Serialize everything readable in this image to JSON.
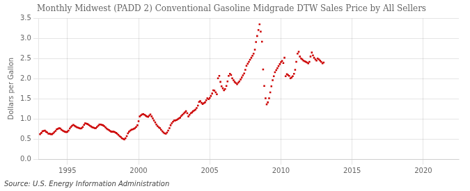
{
  "chart_data": {
    "type": "scatter",
    "title": "Monthly Midwest (PADD 2) Conventional Gasoline Midgrade DTW Sales Price by All Sellers",
    "y_label": "Dollars per Gallon",
    "annotations": [
      "Source: U.S. Energy Information Administration"
    ],
    "color": "#cc0000",
    "marker": "square",
    "grid": true,
    "xlim": [
      1993.0,
      2022.5
    ],
    "ylim": [
      0.0,
      3.5
    ],
    "xticks": [
      1995,
      2000,
      2005,
      2010,
      2015,
      2020
    ],
    "yticks": [
      {
        "value": 0.0,
        "label": "0.0"
      },
      0.5,
      {
        "value": 1.0,
        "label": "1.0"
      },
      1.5,
      {
        "value": 2.0,
        "label": "2.0"
      },
      2.5,
      {
        "value": 3.0,
        "label": "3.0"
      },
      3.5
    ],
    "x": [
      1993.08,
      1993.17,
      1993.25,
      1993.33,
      1993.42,
      1993.5,
      1993.58,
      1993.67,
      1993.75,
      1993.83,
      1993.92,
      1994.0,
      1994.08,
      1994.17,
      1994.25,
      1994.33,
      1994.42,
      1994.5,
      1994.58,
      1994.67,
      1994.75,
      1994.83,
      1994.92,
      1995.0,
      1995.08,
      1995.17,
      1995.25,
      1995.33,
      1995.42,
      1995.5,
      1995.58,
      1995.67,
      1995.75,
      1995.83,
      1995.92,
      1996.0,
      1996.08,
      1996.17,
      1996.25,
      1996.33,
      1996.42,
      1996.5,
      1996.58,
      1996.67,
      1996.75,
      1996.83,
      1996.92,
      1997.0,
      1997.08,
      1997.17,
      1997.25,
      1997.33,
      1997.42,
      1997.5,
      1997.58,
      1997.67,
      1997.75,
      1997.83,
      1997.92,
      1998.0,
      1998.08,
      1998.17,
      1998.25,
      1998.33,
      1998.42,
      1998.5,
      1998.58,
      1998.67,
      1998.75,
      1998.83,
      1998.92,
      1999.0,
      1999.08,
      1999.17,
      1999.25,
      1999.33,
      1999.42,
      1999.5,
      1999.58,
      1999.67,
      1999.75,
      1999.83,
      1999.92,
      2000.0,
      2000.08,
      2000.17,
      2000.25,
      2000.33,
      2000.42,
      2000.5,
      2000.58,
      2000.67,
      2000.75,
      2000.83,
      2000.92,
      2001.0,
      2001.08,
      2001.17,
      2001.25,
      2001.33,
      2001.42,
      2001.5,
      2001.58,
      2001.67,
      2001.75,
      2001.83,
      2001.92,
      2002.0,
      2002.08,
      2002.17,
      2002.25,
      2002.33,
      2002.42,
      2002.5,
      2002.58,
      2002.67,
      2002.75,
      2002.83,
      2002.92,
      2003.0,
      2003.08,
      2003.17,
      2003.25,
      2003.33,
      2003.42,
      2003.5,
      2003.58,
      2003.67,
      2003.75,
      2003.83,
      2003.92,
      2004.0,
      2004.08,
      2004.17,
      2004.25,
      2004.33,
      2004.42,
      2004.5,
      2004.58,
      2004.67,
      2004.75,
      2004.83,
      2004.92,
      2005.0,
      2005.08,
      2005.17,
      2005.25,
      2005.33,
      2005.42,
      2005.5,
      2005.58,
      2005.67,
      2005.75,
      2005.83,
      2005.92,
      2006.0,
      2006.08,
      2006.17,
      2006.25,
      2006.33,
      2006.42,
      2006.5,
      2006.58,
      2006.67,
      2006.75,
      2006.83,
      2006.92,
      2007.0,
      2007.08,
      2007.17,
      2007.25,
      2007.33,
      2007.42,
      2007.5,
      2007.58,
      2007.67,
      2007.75,
      2007.83,
      2007.92,
      2008.0,
      2008.08,
      2008.17,
      2008.25,
      2008.33,
      2008.42,
      2008.5,
      2008.58,
      2008.67,
      2008.75,
      2008.83,
      2008.92,
      2009.0,
      2009.08,
      2009.17,
      2009.25,
      2009.33,
      2009.42,
      2009.5,
      2009.58,
      2009.67,
      2009.75,
      2009.83,
      2009.92,
      2010.0,
      2010.08,
      2010.17,
      2010.25,
      2010.33,
      2010.42,
      2010.5,
      2010.58,
      2010.67,
      2010.75,
      2010.83,
      2010.92,
      2011.0,
      2011.08,
      2011.17,
      2011.25,
      2011.33,
      2011.42,
      2011.5,
      2011.58,
      2011.67,
      2011.75,
      2011.83,
      2011.92,
      2012.0,
      2012.08,
      2012.17,
      2012.25,
      2012.33,
      2012.42,
      2012.5,
      2012.58,
      2012.67,
      2012.75,
      2012.83,
      2012.92,
      2013.0
    ],
    "values": [
      0.62,
      0.65,
      0.69,
      0.7,
      0.71,
      0.68,
      0.66,
      0.63,
      0.63,
      0.62,
      0.62,
      0.64,
      0.67,
      0.7,
      0.74,
      0.75,
      0.77,
      0.76,
      0.73,
      0.71,
      0.69,
      0.68,
      0.67,
      0.68,
      0.71,
      0.76,
      0.8,
      0.83,
      0.85,
      0.83,
      0.81,
      0.79,
      0.78,
      0.77,
      0.76,
      0.77,
      0.8,
      0.85,
      0.89,
      0.88,
      0.87,
      0.85,
      0.83,
      0.81,
      0.79,
      0.78,
      0.77,
      0.77,
      0.8,
      0.83,
      0.86,
      0.86,
      0.85,
      0.84,
      0.82,
      0.79,
      0.76,
      0.74,
      0.72,
      0.7,
      0.68,
      0.68,
      0.68,
      0.67,
      0.65,
      0.63,
      0.6,
      0.57,
      0.55,
      0.52,
      0.5,
      0.49,
      0.52,
      0.57,
      0.64,
      0.68,
      0.71,
      0.73,
      0.74,
      0.75,
      0.77,
      0.8,
      0.84,
      0.94,
      1.06,
      1.09,
      1.11,
      1.12,
      1.1,
      1.08,
      1.06,
      1.05,
      1.08,
      1.11,
      1.06,
      1.01,
      0.96,
      0.91,
      0.86,
      0.82,
      0.79,
      0.77,
      0.73,
      0.69,
      0.66,
      0.64,
      0.63,
      0.66,
      0.71,
      0.77,
      0.84,
      0.89,
      0.93,
      0.96,
      0.96,
      0.97,
      0.99,
      1.01,
      1.03,
      1.07,
      1.1,
      1.13,
      1.16,
      1.19,
      1.14,
      1.06,
      1.1,
      1.14,
      1.16,
      1.19,
      1.21,
      1.23,
      1.27,
      1.33,
      1.42,
      1.44,
      1.4,
      1.37,
      1.39,
      1.41,
      1.46,
      1.51,
      1.49,
      1.52,
      1.57,
      1.63,
      1.71,
      1.7,
      1.66,
      1.61,
      2.01,
      2.07,
      1.92,
      1.81,
      1.76,
      1.71,
      1.74,
      1.82,
      1.93,
      2.07,
      2.12,
      2.09,
      2.01,
      1.96,
      1.92,
      1.89,
      1.86,
      1.9,
      1.93,
      1.98,
      2.03,
      2.08,
      2.13,
      2.22,
      2.32,
      2.37,
      2.42,
      2.47,
      2.52,
      2.57,
      2.62,
      2.72,
      2.91,
      3.06,
      3.21,
      3.35,
      3.17,
      2.92,
      2.23,
      1.82,
      1.51,
      1.36,
      1.41,
      1.51,
      1.66,
      1.81,
      1.96,
      2.06,
      2.16,
      2.21,
      2.26,
      2.31,
      2.36,
      2.41,
      2.44,
      2.39,
      2.52,
      2.06,
      2.11,
      2.09,
      2.07,
      2.01,
      2.03,
      2.06,
      2.12,
      2.22,
      2.42,
      2.62,
      2.67,
      2.55,
      2.5,
      2.48,
      2.45,
      2.43,
      2.42,
      2.4,
      2.38,
      2.42,
      2.55,
      2.65,
      2.58,
      2.52,
      2.48,
      2.45,
      2.5,
      2.48,
      2.45,
      2.42,
      2.38,
      2.4
    ]
  }
}
